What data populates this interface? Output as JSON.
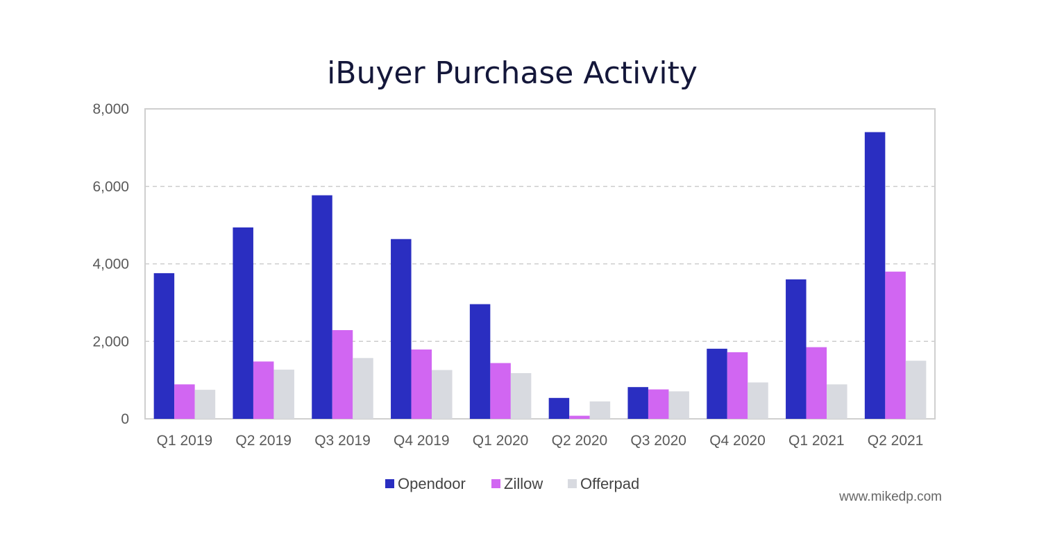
{
  "chart_data": {
    "type": "bar",
    "title": "iBuyer Purchase Activity",
    "categories": [
      "Q1 2019",
      "Q2 2019",
      "Q3 2019",
      "Q4 2019",
      "Q1 2020",
      "Q2 2020",
      "Q3 2020",
      "Q4 2020",
      "Q1 2021",
      "Q2 2021"
    ],
    "series": [
      {
        "name": "Opendoor",
        "color": "#2a2ec1",
        "values": [
          3760,
          4940,
          5770,
          4640,
          2960,
          540,
          820,
          1810,
          3600,
          7400
        ]
      },
      {
        "name": "Zillow",
        "color": "#d166f2",
        "values": [
          890,
          1480,
          2290,
          1790,
          1440,
          80,
          760,
          1720,
          1850,
          3800
        ]
      },
      {
        "name": "Offerpad",
        "color": "#d8dae0",
        "values": [
          750,
          1270,
          1570,
          1260,
          1180,
          450,
          710,
          940,
          890,
          1500
        ]
      }
    ],
    "xlabel": "",
    "ylabel": "",
    "ylim": [
      0,
      8000
    ],
    "yticks": [
      0,
      2000,
      4000,
      6000,
      8000
    ],
    "ytick_labels": [
      "0",
      "2,000",
      "4,000",
      "6,000",
      "8,000"
    ],
    "grid": true,
    "legend_position": "bottom"
  },
  "credit": "www.mikedp.com"
}
